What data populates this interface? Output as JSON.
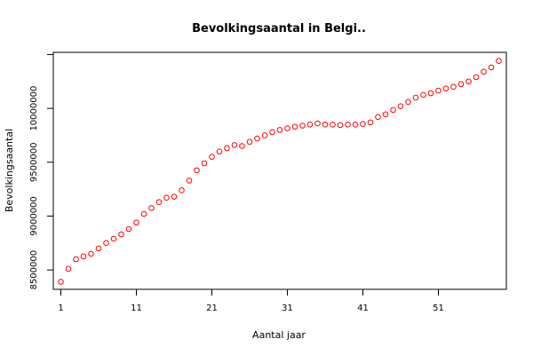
{
  "chart_data": {
    "type": "scatter",
    "title": "Bevolkingsaantal in Belgi..",
    "xlabel": "Aantal jaar",
    "ylabel": "Bevolkingsaantal",
    "xlim": [
      0,
      60
    ],
    "ylim": [
      8320000,
      10520000
    ],
    "x_ticks": [
      1,
      11,
      21,
      31,
      41,
      51
    ],
    "x_tick_labels": [
      "1",
      "11",
      "21",
      "31",
      "41",
      "51"
    ],
    "y_ticks": [
      8500000,
      9000000,
      9500000,
      10000000,
      10500000
    ],
    "y_tick_labels": [
      "8500000",
      "9000000",
      "9500000",
      "10000000",
      ""
    ],
    "point_color": "#ff0000",
    "x": [
      1,
      2,
      3,
      4,
      5,
      6,
      7,
      8,
      9,
      10,
      11,
      12,
      13,
      14,
      15,
      16,
      17,
      18,
      19,
      20,
      21,
      22,
      23,
      24,
      25,
      26,
      27,
      28,
      29,
      30,
      31,
      32,
      33,
      34,
      35,
      36,
      37,
      38,
      39,
      40,
      41,
      42,
      43,
      44,
      45,
      46,
      47,
      48,
      49,
      50,
      51,
      52,
      53,
      54,
      55,
      56,
      57,
      58,
      59
    ],
    "y": [
      8390000,
      8510000,
      8600000,
      8625000,
      8650000,
      8700000,
      8750000,
      8790000,
      8830000,
      8880000,
      8940000,
      9020000,
      9075000,
      9130000,
      9170000,
      9180000,
      9240000,
      9330000,
      9425000,
      9490000,
      9550000,
      9600000,
      9630000,
      9660000,
      9650000,
      9690000,
      9720000,
      9750000,
      9780000,
      9800000,
      9815000,
      9830000,
      9840000,
      9850000,
      9860000,
      9850000,
      9850000,
      9845000,
      9850000,
      9850000,
      9855000,
      9870000,
      9920000,
      9945000,
      9985000,
      10020000,
      10060000,
      10100000,
      10125000,
      10140000,
      10165000,
      10185000,
      10200000,
      10225000,
      10250000,
      10290000,
      10340000,
      10380000,
      10440000
    ]
  }
}
